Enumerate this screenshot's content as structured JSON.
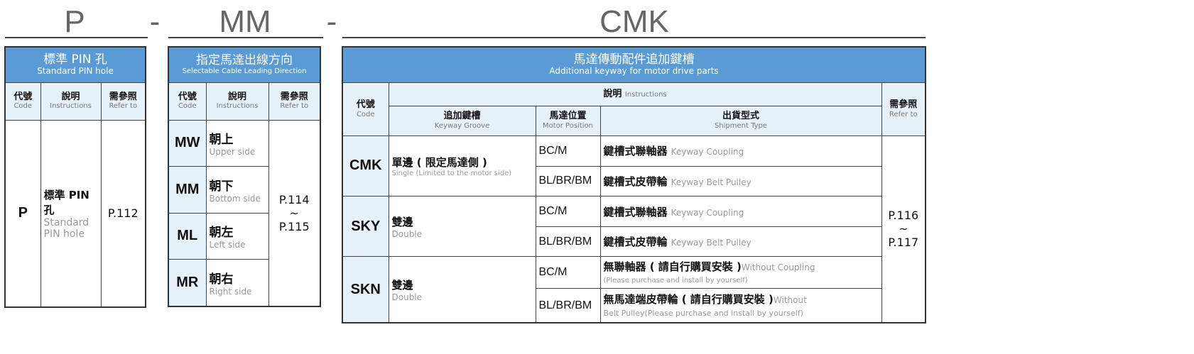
{
  "titles": {
    "p": "P",
    "dash1": "-",
    "mm": "MM",
    "dash2": "-",
    "cmk": "CMK"
  },
  "t1": {
    "title_zh": "標準 PIN 孔",
    "title_en": "Standard PIN hole",
    "h_code": "代號",
    "h_code_en": "Code",
    "h_inst": "說明",
    "h_inst_en": "Instructions",
    "h_ref": "需參照",
    "h_ref_en": "Refer to",
    "code": "P",
    "desc_zh": "標準 PIN 孔",
    "desc_en": "Standard PIN hole",
    "ref": "P.112"
  },
  "t2": {
    "title_zh": "指定馬達出線方向",
    "title_en": "Selectable Cable Leading Direction",
    "h_code": "代號",
    "h_code_en": "Code",
    "h_inst": "說明",
    "h_inst_en": "Instructions",
    "h_ref": "需參照",
    "h_ref_en": "Refer to",
    "rows": [
      {
        "code": "MW",
        "zh": "朝上",
        "en": "Upper side"
      },
      {
        "code": "MM",
        "zh": "朝下",
        "en": "Bottom side"
      },
      {
        "code": "ML",
        "zh": "朝左",
        "en": "Left side"
      },
      {
        "code": "MR",
        "zh": "朝右",
        "en": "Right side"
      }
    ],
    "ref1": "P.114",
    "ref2": "~",
    "ref3": "P.115"
  },
  "t3": {
    "title_zh": "馬達傳動配件追加鍵槽",
    "title_en": "Additional keyway for motor drive parts",
    "h_code": "代號",
    "h_code_en": "Code",
    "h_inst": "說明",
    "h_inst_en": "Instructions",
    "h_ref": "需參照",
    "h_ref_en": "Refer to",
    "h_key": "追加鍵槽",
    "h_key_en": "Keyway Groove",
    "h_pos": "馬達位置",
    "h_pos_en": "Motor Position",
    "h_ship": "出貨型式",
    "h_ship_en": "Shipment Type",
    "groups": [
      {
        "code": "CMK",
        "zh": "單邊 ( 限定馬達側 )",
        "en": "Single (Limited to the motor side)",
        "rows": [
          {
            "pos": "BC/M",
            "zh": "鍵槽式聯軸器",
            "en": "Keyway Coupling"
          },
          {
            "pos": "BL/BR/BM",
            "zh": "鍵槽式皮帶輪",
            "en": "Keyway Belt Pulley"
          }
        ]
      },
      {
        "code": "SKY",
        "zh": "雙邊",
        "en": "Double",
        "rows": [
          {
            "pos": "BC/M",
            "zh": "鍵槽式聯軸器",
            "en": "Keyway Coupling"
          },
          {
            "pos": "BL/BR/BM",
            "zh": "鍵槽式皮帶輪",
            "en": "Keyway Belt Pulley"
          }
        ]
      },
      {
        "code": "SKN",
        "zh": "雙邊",
        "en": "Double",
        "rows": [
          {
            "pos": "BC/M",
            "zh": "無聯軸器 ( 請自行購買安裝 )",
            "en": "Without Coupling",
            "en2": "(Please purchase and install by yourself)"
          },
          {
            "pos": "BL/BR/BM",
            "zh": "無馬達端皮帶輪 ( 請自行購買安裝 )",
            "en": "Without",
            "en2": "Belt Pulley(Please purchase and install by yourself)"
          }
        ]
      }
    ],
    "ref1": "P.116",
    "ref2": "~",
    "ref3": "P.117"
  },
  "colors": {
    "header_blue": "#5b9bd5",
    "light_blue": "#e7f1fa"
  }
}
